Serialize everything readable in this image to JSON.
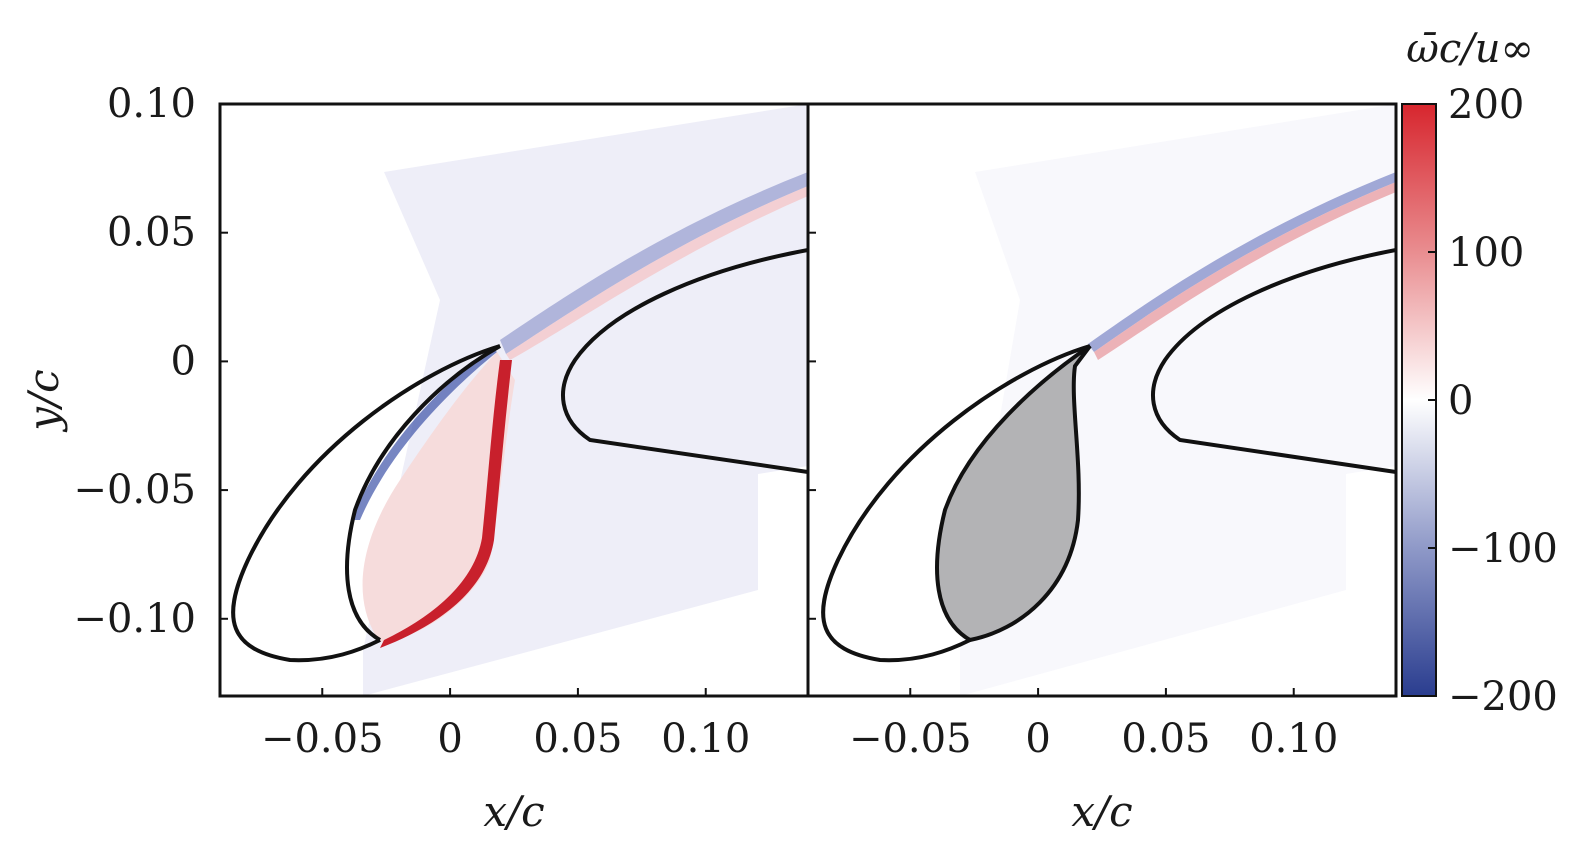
{
  "chart_data": {
    "type": "heatmap",
    "panels": [
      {
        "name": "left",
        "xlabel": "x/c",
        "ylabel": "y/c",
        "xlim": [
          -0.09,
          0.14
        ],
        "ylim": [
          -0.13,
          0.1
        ],
        "x_ticks": [
          -0.05,
          0,
          0.05,
          0.1
        ],
        "y_ticks": [
          0.1,
          0.05,
          0,
          -0.05,
          -0.1
        ],
        "x_tick_labels": [
          "−0.05",
          "0",
          "0.05",
          "0.10"
        ],
        "y_tick_labels": [
          "0.10",
          "0.05",
          "0",
          "−0.05",
          "−0.10"
        ],
        "slat_cove_filled": false
      },
      {
        "name": "right",
        "xlabel": "x/c",
        "xlim": [
          -0.09,
          0.14
        ],
        "ylim": [
          -0.13,
          0.1
        ],
        "x_ticks": [
          -0.05,
          0,
          0.05,
          0.1
        ],
        "x_tick_labels": [
          "−0.05",
          "0",
          "0.05",
          "0.10"
        ],
        "slat_cove_filled": true
      }
    ],
    "colorbar": {
      "title": "ω̄c/u∞",
      "range": [
        -200,
        200
      ],
      "ticks": [
        200,
        100,
        0,
        -100,
        -200
      ],
      "tick_labels": [
        "200",
        "100",
        "0",
        "−100",
        "−200"
      ],
      "colormap": [
        "#2a3d8f",
        "#ffffff",
        "#d7262e"
      ]
    },
    "colors": {
      "positive": "#d7262e",
      "negative": "#2a3d8f",
      "background_tint": "#eeeef8",
      "filled_cove": "#b3b3b5",
      "outline": "#111111"
    }
  }
}
